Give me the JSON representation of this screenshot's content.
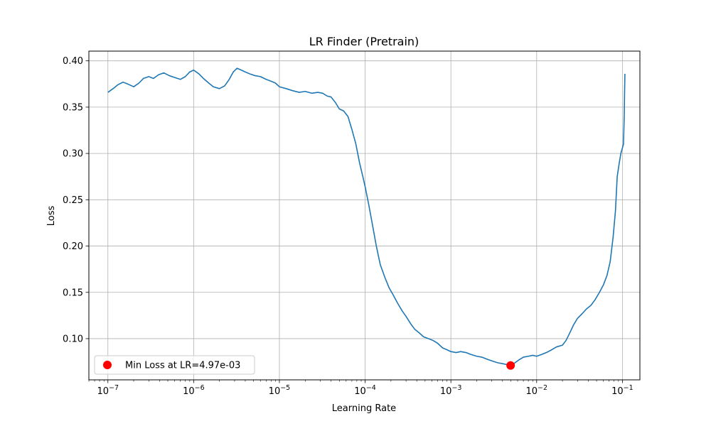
{
  "chart_data": {
    "type": "line",
    "title": "LR Finder (Pretrain)",
    "xlabel": "Learning Rate",
    "ylabel": "Loss",
    "xscale": "log",
    "xlim": [
      6e-08,
      0.16
    ],
    "ylim": [
      0.0555,
      0.4105
    ],
    "grid": true,
    "x_ticks": [
      {
        "value": 1e-07,
        "base": "10",
        "exp": "−7"
      },
      {
        "value": 1e-06,
        "base": "10",
        "exp": "−6"
      },
      {
        "value": 1e-05,
        "base": "10",
        "exp": "−5"
      },
      {
        "value": 0.0001,
        "base": "10",
        "exp": "−4"
      },
      {
        "value": 0.001,
        "base": "10",
        "exp": "−3"
      },
      {
        "value": 0.01,
        "base": "10",
        "exp": "−2"
      },
      {
        "value": 0.1,
        "base": "10",
        "exp": "−1"
      }
    ],
    "y_ticks": [
      {
        "value": 0.1,
        "label": "0.10"
      },
      {
        "value": 0.15,
        "label": "0.15"
      },
      {
        "value": 0.2,
        "label": "0.20"
      },
      {
        "value": 0.25,
        "label": "0.25"
      },
      {
        "value": 0.3,
        "label": "0.30"
      },
      {
        "value": 0.35,
        "label": "0.35"
      },
      {
        "value": 0.4,
        "label": "0.40"
      }
    ],
    "line_color": "#1f77b4",
    "marker_color": "#ff0000",
    "series": [
      {
        "points": [
          [
            1e-07,
            0.366
          ],
          [
            1.15e-07,
            0.37
          ],
          [
            1.3e-07,
            0.374
          ],
          [
            1.5e-07,
            0.377
          ],
          [
            1.7e-07,
            0.375
          ],
          [
            2e-07,
            0.372
          ],
          [
            2.3e-07,
            0.376
          ],
          [
            2.6e-07,
            0.381
          ],
          [
            3e-07,
            0.383
          ],
          [
            3.4e-07,
            0.381
          ],
          [
            3.9e-07,
            0.385
          ],
          [
            4.5e-07,
            0.387
          ],
          [
            5.2e-07,
            0.384
          ],
          [
            6e-07,
            0.382
          ],
          [
            7e-07,
            0.38
          ],
          [
            8e-07,
            0.383
          ],
          [
            9e-07,
            0.388
          ],
          [
            1e-06,
            0.39
          ],
          [
            1.15e-06,
            0.386
          ],
          [
            1.3e-06,
            0.381
          ],
          [
            1.5e-06,
            0.376
          ],
          [
            1.7e-06,
            0.372
          ],
          [
            2e-06,
            0.37
          ],
          [
            2.3e-06,
            0.373
          ],
          [
            2.6e-06,
            0.38
          ],
          [
            2.9e-06,
            0.388
          ],
          [
            3.2e-06,
            0.392
          ],
          [
            3.6e-06,
            0.39
          ],
          [
            4e-06,
            0.388
          ],
          [
            4.5e-06,
            0.386
          ],
          [
            5.2e-06,
            0.384
          ],
          [
            6e-06,
            0.383
          ],
          [
            7e-06,
            0.38
          ],
          [
            8e-06,
            0.378
          ],
          [
            9e-06,
            0.376
          ],
          [
            1e-05,
            0.372
          ],
          [
            1.2e-05,
            0.37
          ],
          [
            1.4e-05,
            0.368
          ],
          [
            1.7e-05,
            0.366
          ],
          [
            2e-05,
            0.367
          ],
          [
            2.4e-05,
            0.365
          ],
          [
            2.8e-05,
            0.366
          ],
          [
            3.2e-05,
            0.365
          ],
          [
            3.6e-05,
            0.362
          ],
          [
            4e-05,
            0.361
          ],
          [
            4.5e-05,
            0.355
          ],
          [
            5e-05,
            0.348
          ],
          [
            5.6e-05,
            0.346
          ],
          [
            6.3e-05,
            0.34
          ],
          [
            7e-05,
            0.326
          ],
          [
            7.8e-05,
            0.31
          ],
          [
            8.6e-05,
            0.29
          ],
          [
            9.4e-05,
            0.275
          ],
          [
            0.0001,
            0.264
          ],
          [
            0.00011,
            0.245
          ],
          [
            0.00012,
            0.226
          ],
          [
            0.000135,
            0.2
          ],
          [
            0.00015,
            0.18
          ],
          [
            0.00017,
            0.166
          ],
          [
            0.00019,
            0.155
          ],
          [
            0.00021,
            0.148
          ],
          [
            0.00024,
            0.138
          ],
          [
            0.00027,
            0.13
          ],
          [
            0.0003,
            0.124
          ],
          [
            0.00034,
            0.116
          ],
          [
            0.00038,
            0.11
          ],
          [
            0.00043,
            0.106
          ],
          [
            0.00048,
            0.102
          ],
          [
            0.00055,
            0.1
          ],
          [
            0.00062,
            0.098
          ],
          [
            0.0007,
            0.095
          ],
          [
            0.0008,
            0.09
          ],
          [
            0.0009,
            0.088
          ],
          [
            0.001,
            0.086
          ],
          [
            0.00115,
            0.085
          ],
          [
            0.0013,
            0.086
          ],
          [
            0.0015,
            0.085
          ],
          [
            0.0017,
            0.083
          ],
          [
            0.002,
            0.081
          ],
          [
            0.0023,
            0.08
          ],
          [
            0.0026,
            0.078
          ],
          [
            0.003,
            0.076
          ],
          [
            0.0035,
            0.074
          ],
          [
            0.004,
            0.073
          ],
          [
            0.0045,
            0.072
          ],
          [
            0.00497,
            0.071
          ],
          [
            0.0056,
            0.074
          ],
          [
            0.0062,
            0.077
          ],
          [
            0.007,
            0.08
          ],
          [
            0.008,
            0.081
          ],
          [
            0.009,
            0.082
          ],
          [
            0.01,
            0.081
          ],
          [
            0.0115,
            0.083
          ],
          [
            0.013,
            0.085
          ],
          [
            0.015,
            0.088
          ],
          [
            0.017,
            0.091
          ],
          [
            0.02,
            0.093
          ],
          [
            0.022,
            0.098
          ],
          [
            0.024,
            0.105
          ],
          [
            0.027,
            0.115
          ],
          [
            0.03,
            0.122
          ],
          [
            0.034,
            0.127
          ],
          [
            0.038,
            0.132
          ],
          [
            0.043,
            0.136
          ],
          [
            0.048,
            0.142
          ],
          [
            0.054,
            0.15
          ],
          [
            0.06,
            0.158
          ],
          [
            0.066,
            0.168
          ],
          [
            0.072,
            0.183
          ],
          [
            0.078,
            0.21
          ],
          [
            0.083,
            0.238
          ],
          [
            0.087,
            0.275
          ],
          [
            0.092,
            0.29
          ],
          [
            0.096,
            0.3
          ],
          [
            0.1,
            0.306
          ],
          [
            0.103,
            0.31
          ],
          [
            0.105,
            0.34
          ],
          [
            0.106,
            0.365
          ],
          [
            0.107,
            0.386
          ]
        ]
      }
    ],
    "min_marker": {
      "x": 0.00497,
      "y": 0.071
    },
    "legend": {
      "position": "lower-left",
      "label": "Min Loss at LR=4.97e-03"
    }
  }
}
